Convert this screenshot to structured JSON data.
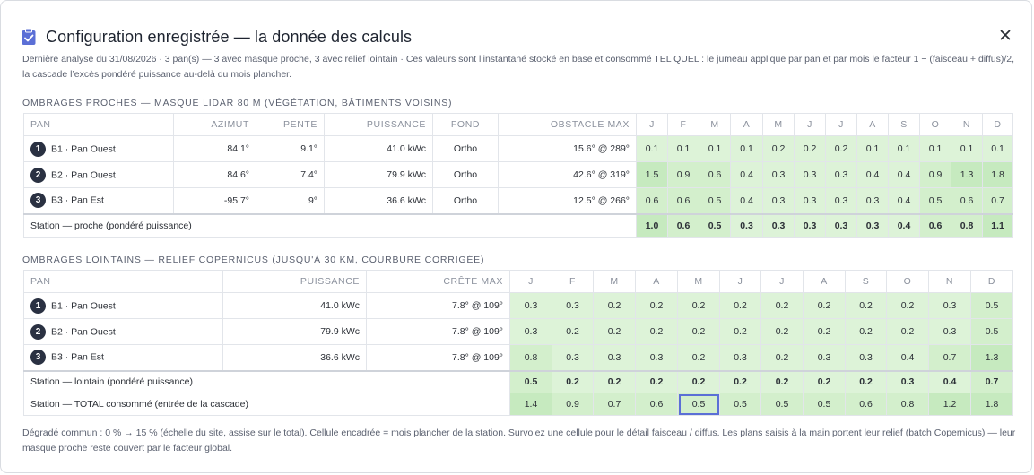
{
  "dialog": {
    "title": "Configuration enregistrée — la donnée des calculs",
    "title_icon": "clipboard-check-icon",
    "close_icon": "close-icon",
    "subtitle": "Dernière analyse du 31/08/2026 · 3 pan(s) — 3 avec masque proche, 3 avec relief lointain · Ces valeurs sont l’instantané stocké en base et consommé TEL QUEL : le jumeau applique par pan et par mois le facteur 1 − (faisceau + diffus)/2, la cascade l’excès pondéré puissance au-delà du mois plancher.",
    "footer": "Dégradé commun : 0 % → 15 % (échelle du site, assise sur le total). Cellule encadrée = mois plancher de la station. Survolez une cellule pour le détail faisceau / diffus. Les plans saisis à la main portent leur relief (batch Copernicus) — leur masque proche reste couvert par le facteur global."
  },
  "colors": {
    "accent": "#5b6fd6",
    "green_light": "#ddf3d8",
    "green_mid": "#d3efcc",
    "green_dark": "#c6eabf",
    "badge": "#2a3142"
  },
  "months": [
    "J",
    "F",
    "M",
    "A",
    "M",
    "J",
    "J",
    "A",
    "S",
    "O",
    "N",
    "D"
  ],
  "near": {
    "title": "Ombrages proches — masque LiDAR 80 m (végétation, bâtiments voisins)",
    "headers": {
      "pan": "PAN",
      "azimut": "AZIMUT",
      "pente": "PENTE",
      "puissance": "PUISSANCE",
      "fond": "FOND",
      "obstacle": "OBSTACLE MAX"
    },
    "rows": [
      {
        "num": "1",
        "label": "B1 · Pan Ouest",
        "azimut": "84.1°",
        "pente": "9.1°",
        "puissance": "41.0 kWc",
        "fond": "Ortho",
        "obstacle": "15.6° @ 289°",
        "values": [
          "0.1",
          "0.1",
          "0.1",
          "0.1",
          "0.2",
          "0.2",
          "0.2",
          "0.1",
          "0.1",
          "0.1",
          "0.1",
          "0.1"
        ]
      },
      {
        "num": "2",
        "label": "B2 · Pan Ouest",
        "azimut": "84.6°",
        "pente": "7.4°",
        "puissance": "79.9 kWc",
        "fond": "Ortho",
        "obstacle": "42.6° @ 319°",
        "values": [
          "1.5",
          "0.9",
          "0.6",
          "0.4",
          "0.3",
          "0.3",
          "0.3",
          "0.4",
          "0.4",
          "0.9",
          "1.3",
          "1.8"
        ]
      },
      {
        "num": "3",
        "label": "B3 · Pan Est",
        "azimut": "-95.7°",
        "pente": "9°",
        "puissance": "36.6 kWc",
        "fond": "Ortho",
        "obstacle": "12.5° @ 266°",
        "values": [
          "0.6",
          "0.6",
          "0.5",
          "0.4",
          "0.3",
          "0.3",
          "0.3",
          "0.3",
          "0.4",
          "0.5",
          "0.6",
          "0.7"
        ]
      }
    ],
    "station": {
      "label": "Station — proche (pondéré puissance)",
      "values": [
        "1.0",
        "0.6",
        "0.5",
        "0.3",
        "0.3",
        "0.3",
        "0.3",
        "0.3",
        "0.4",
        "0.6",
        "0.8",
        "1.1"
      ]
    }
  },
  "far": {
    "title": "Ombrages lointains — relief Copernicus (jusqu'à 30 km, courbure corrigée)",
    "headers": {
      "pan": "PAN",
      "puissance": "PUISSANCE",
      "crete": "CRÊTE MAX"
    },
    "rows": [
      {
        "num": "1",
        "label": "B1 · Pan Ouest",
        "puissance": "41.0 kWc",
        "crete": "7.8° @ 109°",
        "values": [
          "0.3",
          "0.3",
          "0.2",
          "0.2",
          "0.2",
          "0.2",
          "0.2",
          "0.2",
          "0.2",
          "0.2",
          "0.3",
          "0.5"
        ]
      },
      {
        "num": "2",
        "label": "B2 · Pan Ouest",
        "puissance": "79.9 kWc",
        "crete": "7.8° @ 109°",
        "values": [
          "0.3",
          "0.2",
          "0.2",
          "0.2",
          "0.2",
          "0.2",
          "0.2",
          "0.2",
          "0.2",
          "0.2",
          "0.3",
          "0.5"
        ]
      },
      {
        "num": "3",
        "label": "B3 · Pan Est",
        "puissance": "36.6 kWc",
        "crete": "7.8° @ 109°",
        "values": [
          "0.8",
          "0.3",
          "0.3",
          "0.3",
          "0.2",
          "0.3",
          "0.2",
          "0.3",
          "0.3",
          "0.4",
          "0.7",
          "1.3"
        ]
      }
    ],
    "station": {
      "label": "Station — lointain (pondéré puissance)",
      "values": [
        "0.5",
        "0.2",
        "0.2",
        "0.2",
        "0.2",
        "0.2",
        "0.2",
        "0.2",
        "0.2",
        "0.3",
        "0.4",
        "0.7"
      ]
    },
    "total": {
      "label": "Station — TOTAL consommé (entrée de la cascade)",
      "values": [
        "1.4",
        "0.9",
        "0.7",
        "0.6",
        "0.5",
        "0.5",
        "0.5",
        "0.5",
        "0.6",
        "0.8",
        "1.2",
        "1.8"
      ],
      "floor_month_index": 4
    }
  }
}
